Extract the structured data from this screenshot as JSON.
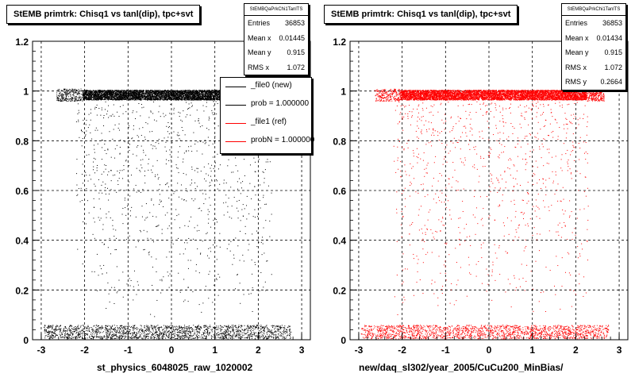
{
  "footer_text": "",
  "chart_data": [
    {
      "type": "scatter",
      "title": "StEMB primtrk: Chisq1 vs tanl(dip), tpc+svt",
      "xlabel": "st_physics_6048025_raw_1020002",
      "ylabel": "",
      "xlim": [
        -3.2,
        3.2
      ],
      "ylim": [
        0,
        1.2
      ],
      "x_ticks": [
        "-3",
        "-2",
        "-1",
        "0",
        "1",
        "2",
        "3"
      ],
      "y_ticks": [
        "0",
        "0.2",
        "0.4",
        "0.6",
        "0.8",
        "1",
        "1.2"
      ],
      "grid": true,
      "point_color": "#000000",
      "stats": {
        "name": "StEMBQaPrkChi1TanlTS",
        "rows": [
          {
            "label": "Entries",
            "value": "36853"
          },
          {
            "label": "Mean x",
            "value": "0.01445"
          },
          {
            "label": "Mean y",
            "value": "0.915"
          },
          {
            "label": "RMS x",
            "value": "1.072"
          }
        ]
      },
      "legend": {
        "placement": "top-right",
        "entries": [
          {
            "label": "_file0 (new)",
            "color": "#000000"
          },
          {
            "label": "prob = 1.000000",
            "color": "#000000"
          },
          {
            "label": "_file1 (ref)",
            "color": "#ff0000"
          },
          {
            "label": "probN = 1.000000",
            "color": "#ff0000"
          }
        ]
      }
    },
    {
      "type": "scatter",
      "title": "StEMB primtrk: Chisq1 vs tanl(dip), tpc+svt",
      "xlabel": "new/daq_sl302/year_2005/CuCu200_MinBias/",
      "ylabel": "",
      "xlim": [
        -3.2,
        3.2
      ],
      "ylim": [
        0,
        1.2
      ],
      "x_ticks": [
        "-3",
        "-2",
        "-1",
        "0",
        "1",
        "2",
        "3"
      ],
      "y_ticks": [
        "0",
        "0.2",
        "0.4",
        "0.6",
        "0.8",
        "1",
        "1.2"
      ],
      "grid": true,
      "point_color": "#ff0000",
      "stats": {
        "name": "StEMBQaPrkChi1TanlTS",
        "rows": [
          {
            "label": "Entries",
            "value": "36853"
          },
          {
            "label": "Mean x",
            "value": "0.01434"
          },
          {
            "label": "Mean y",
            "value": "0.915"
          },
          {
            "label": "RMS x",
            "value": "1.072"
          },
          {
            "label": "RMS y",
            "value": "0.2664"
          }
        ]
      }
    }
  ]
}
